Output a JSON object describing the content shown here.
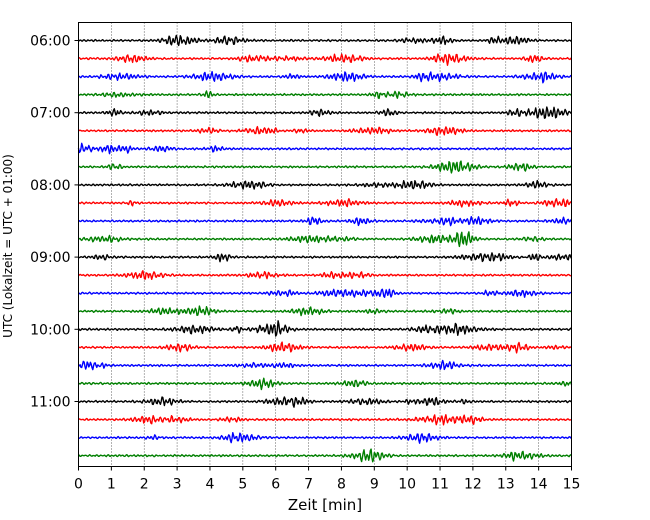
{
  "chart_data": {
    "type": "line",
    "title": "",
    "xlabel": "Zeit  [min]",
    "ylabel": "UTC (Lokalzeit = UTC + 01:00)",
    "xlim": [
      0,
      15
    ],
    "x_ticks": [
      "0",
      "1",
      "2",
      "3",
      "4",
      "5",
      "6",
      "7",
      "8",
      "9",
      "10",
      "11",
      "12",
      "13",
      "14",
      "15"
    ],
    "y_ticks": [
      "06:00",
      "07:00",
      "08:00",
      "09:00",
      "10:00",
      "11:00"
    ],
    "grid": "vertical-dotted",
    "trace_interval_minutes": 15,
    "traces_per_hour": 4,
    "hours": 6,
    "color_cycle": [
      "#000000",
      "#ff0000",
      "#0000ff",
      "#007f00"
    ],
    "series": [
      {
        "start": "06:00",
        "color": "#000000"
      },
      {
        "start": "06:15",
        "color": "#ff0000"
      },
      {
        "start": "06:30",
        "color": "#0000ff"
      },
      {
        "start": "06:45",
        "color": "#007f00"
      },
      {
        "start": "07:00",
        "color": "#000000"
      },
      {
        "start": "07:15",
        "color": "#ff0000"
      },
      {
        "start": "07:30",
        "color": "#0000ff"
      },
      {
        "start": "07:45",
        "color": "#007f00"
      },
      {
        "start": "08:00",
        "color": "#000000"
      },
      {
        "start": "08:15",
        "color": "#ff0000"
      },
      {
        "start": "08:30",
        "color": "#0000ff"
      },
      {
        "start": "08:45",
        "color": "#007f00"
      },
      {
        "start": "09:00",
        "color": "#000000"
      },
      {
        "start": "09:15",
        "color": "#ff0000"
      },
      {
        "start": "09:30",
        "color": "#0000ff"
      },
      {
        "start": "09:45",
        "color": "#007f00"
      },
      {
        "start": "10:00",
        "color": "#000000"
      },
      {
        "start": "10:15",
        "color": "#ff0000"
      },
      {
        "start": "10:30",
        "color": "#0000ff"
      },
      {
        "start": "10:45",
        "color": "#007f00"
      },
      {
        "start": "11:00",
        "color": "#000000"
      },
      {
        "start": "11:15",
        "color": "#ff0000"
      },
      {
        "start": "11:30",
        "color": "#0000ff"
      },
      {
        "start": "11:45",
        "color": "#007f00"
      }
    ]
  }
}
